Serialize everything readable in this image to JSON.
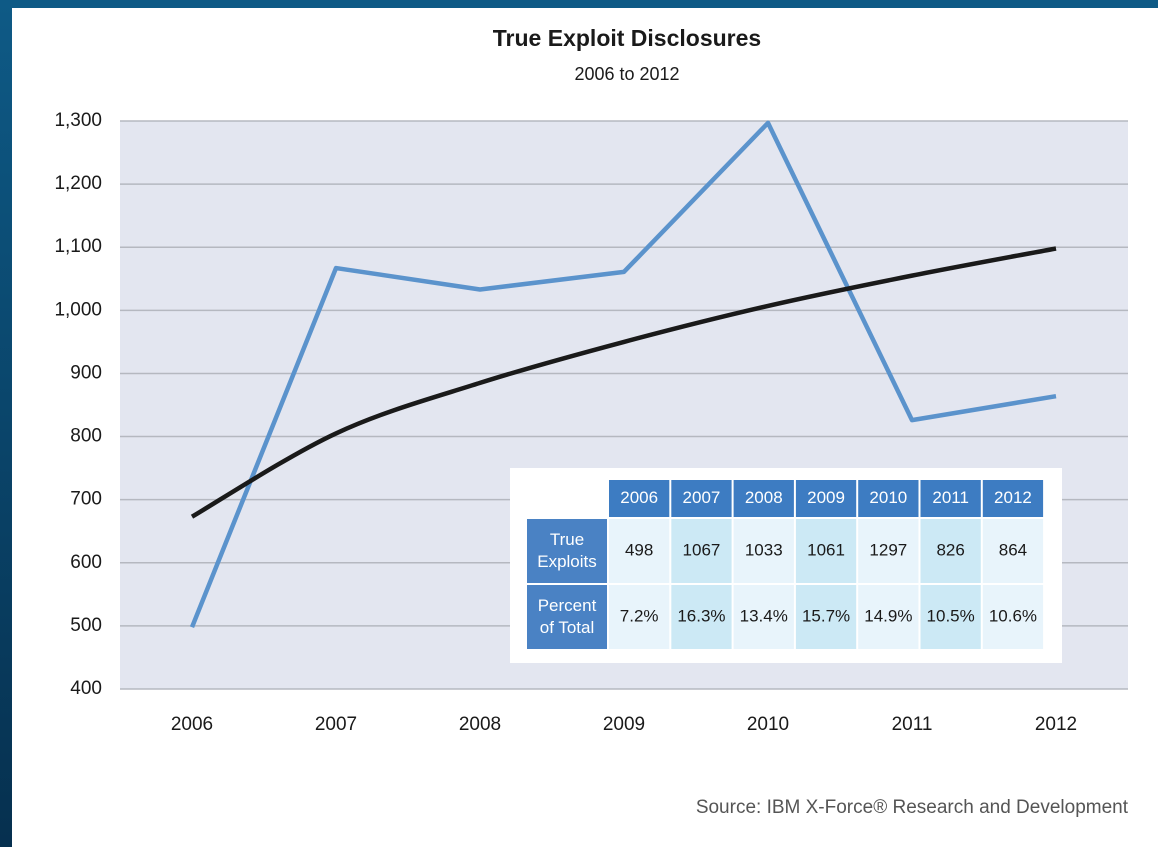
{
  "chart_data": {
    "type": "line",
    "title": "True Exploit Disclosures",
    "subtitle": "2006 to 2012",
    "categories": [
      "2006",
      "2007",
      "2008",
      "2009",
      "2010",
      "2011",
      "2012"
    ],
    "series": [
      {
        "color": "#5b93cc",
        "values": [
          498,
          1067,
          1033,
          1061,
          1297,
          826,
          864
        ]
      },
      {
        "color": "#1a1a1a",
        "values": [
          673,
          805,
          885,
          950,
          1007,
          1055,
          1098
        ]
      }
    ],
    "ylim": [
      400,
      1300
    ],
    "yticks": [
      400,
      500,
      600,
      700,
      800,
      900,
      {
        "value": 1000,
        "label": "1,000"
      },
      {
        "value": 1100,
        "label": "1,100"
      },
      {
        "value": 1200,
        "label": "1,200"
      },
      {
        "value": 1300,
        "label": "1,300"
      }
    ],
    "grid": true,
    "table": {
      "row_labels": [
        "True Exploits",
        "Percent of Total"
      ],
      "percent": [
        "7.2%",
        "16.3%",
        "13.4%",
        "15.7%",
        "14.9%",
        "10.5%",
        "10.6%"
      ]
    },
    "source": "Source: IBM X-Force® Research and Development"
  }
}
